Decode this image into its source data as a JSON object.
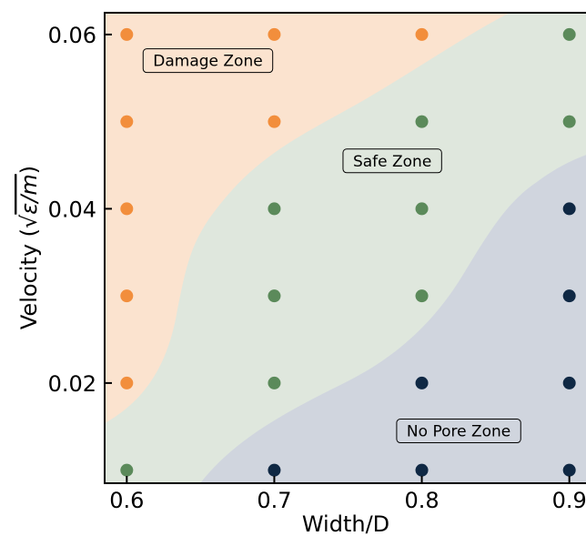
{
  "chart_data": {
    "type": "scatter",
    "xlabel": "Width/D",
    "ylabel_prefix": "Velocity (",
    "ylabel_math": "ε/m",
    "ylabel_suffix": ")",
    "xlim": [
      0.585,
      0.915
    ],
    "ylim": [
      0.0085,
      0.0625
    ],
    "x_ticks": [
      0.6,
      0.7,
      0.8,
      0.9
    ],
    "x_tick_labels": [
      "0.6",
      "0.7",
      "0.8",
      "0.9"
    ],
    "y_ticks": [
      0.02,
      0.04,
      0.06
    ],
    "y_tick_labels": [
      "0.02",
      "0.04",
      "0.06"
    ],
    "grid": false,
    "colors": {
      "damage_point": "#f28e3c",
      "safe_point": "#5b8a5a",
      "no_pore_point": "#0f2844",
      "damage_region": "#fbe3cf",
      "safe_region": "#dfe7dd",
      "no_pore_region": "#d0d5de"
    },
    "regions": [
      {
        "label": "Damage Zone",
        "label_x": 0.655,
        "label_y": 0.057
      },
      {
        "label": "Safe Zone",
        "label_x": 0.78,
        "label_y": 0.0455
      },
      {
        "label": "No Pore Zone",
        "label_x": 0.825,
        "label_y": 0.0145
      }
    ],
    "series": [
      {
        "class": "damage",
        "x": [
          0.6,
          0.6,
          0.6,
          0.6,
          0.6,
          0.7,
          0.7,
          0.8
        ],
        "y": [
          0.02,
          0.03,
          0.04,
          0.05,
          0.06,
          0.05,
          0.06,
          0.06
        ]
      },
      {
        "class": "safe",
        "x": [
          0.6,
          0.7,
          0.7,
          0.7,
          0.8,
          0.8,
          0.8,
          0.9,
          0.9
        ],
        "y": [
          0.01,
          0.02,
          0.03,
          0.04,
          0.03,
          0.04,
          0.05,
          0.05,
          0.06
        ]
      },
      {
        "class": "no_pore",
        "x": [
          0.7,
          0.8,
          0.8,
          0.9,
          0.9,
          0.9,
          0.9
        ],
        "y": [
          0.01,
          0.01,
          0.02,
          0.01,
          0.02,
          0.03,
          0.04
        ]
      }
    ]
  }
}
